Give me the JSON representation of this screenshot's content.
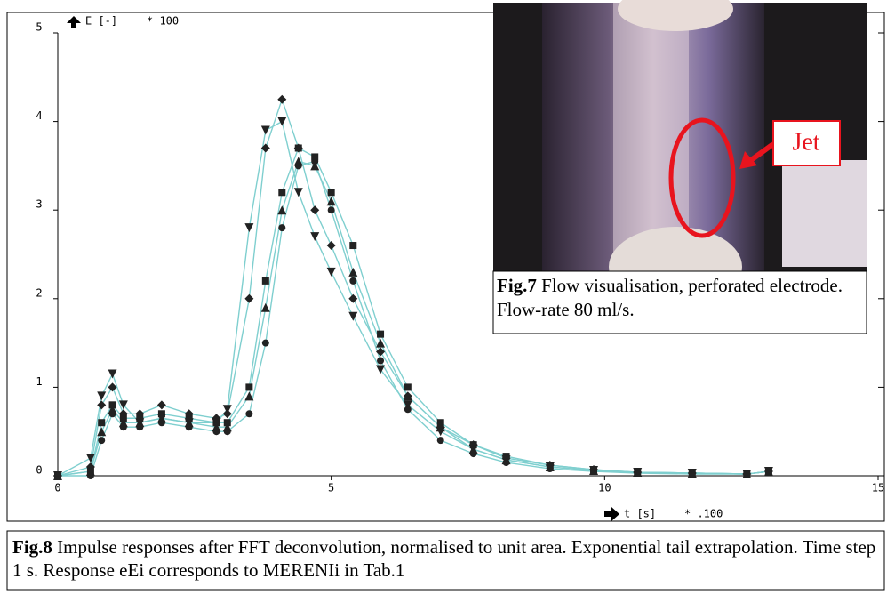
{
  "chart_data": {
    "type": "line",
    "y_axis_label": "E [-]",
    "y_axis_multiplier": "* 100",
    "x_axis_label": "t [s]",
    "x_axis_multiplier": "* .100",
    "x": [
      0,
      0.6,
      0.8,
      1.0,
      1.2,
      1.5,
      1.9,
      2.4,
      2.9,
      3.1,
      3.5,
      3.8,
      4.1,
      4.4,
      4.7,
      5.0,
      5.4,
      5.9,
      6.4,
      7.0,
      7.6,
      8.2,
      9.0,
      9.8,
      10.6,
      11.6,
      12.6,
      13.0
    ],
    "series": [
      {
        "color": "#7fcfcf",
        "marker": "diamond",
        "values": [
          0,
          0.1,
          0.8,
          1.0,
          0.7,
          0.7,
          0.8,
          0.7,
          0.65,
          0.7,
          2.0,
          3.7,
          4.25,
          3.7,
          3.0,
          2.6,
          2.0,
          1.4,
          0.9,
          0.55,
          0.35,
          0.2,
          0.12,
          0.07,
          0.04,
          0.03,
          0.02,
          0.05
        ]
      },
      {
        "color": "#7fcfcf",
        "marker": "triangle-down",
        "values": [
          0,
          0.2,
          0.9,
          1.15,
          0.8,
          0.6,
          0.65,
          0.6,
          0.6,
          0.75,
          2.8,
          3.9,
          4.0,
          3.2,
          2.7,
          2.3,
          1.8,
          1.2,
          0.8,
          0.5,
          0.3,
          0.18,
          0.1,
          0.06,
          0.04,
          0.03,
          0.02,
          0.05
        ]
      },
      {
        "color": "#7fcfcf",
        "marker": "square",
        "values": [
          0,
          0.05,
          0.6,
          0.8,
          0.65,
          0.65,
          0.7,
          0.65,
          0.6,
          0.6,
          1.0,
          2.2,
          3.2,
          3.7,
          3.6,
          3.2,
          2.6,
          1.6,
          1.0,
          0.6,
          0.35,
          0.22,
          0.12,
          0.07,
          0.04,
          0.03,
          0.02,
          0.05
        ]
      },
      {
        "color": "#7fcfcf",
        "marker": "triangle-up",
        "values": [
          0,
          0.05,
          0.5,
          0.75,
          0.6,
          0.6,
          0.65,
          0.6,
          0.55,
          0.55,
          0.9,
          1.9,
          3.0,
          3.55,
          3.5,
          3.1,
          2.3,
          1.5,
          0.9,
          0.55,
          0.3,
          0.18,
          0.1,
          0.06,
          0.04,
          0.03,
          0.02,
          0.05
        ]
      },
      {
        "color": "#7fcfcf",
        "marker": "circle",
        "values": [
          0,
          0.0,
          0.4,
          0.7,
          0.55,
          0.55,
          0.6,
          0.55,
          0.5,
          0.5,
          0.7,
          1.5,
          2.8,
          3.5,
          3.55,
          3.0,
          2.2,
          1.3,
          0.75,
          0.4,
          0.25,
          0.15,
          0.08,
          0.05,
          0.03,
          0.02,
          0.02,
          0.05
        ]
      }
    ],
    "xlim": [
      0,
      15
    ],
    "xticks": [
      0,
      5,
      10,
      15
    ],
    "ylim": [
      0,
      5
    ],
    "yticks": [
      0,
      1,
      2,
      3,
      4,
      5
    ],
    "marker_color": "#222222",
    "inset": {
      "callout": "Jet",
      "caption_label": "Fig.7",
      "caption_text": " Flow visualisation, perforated electrode. Flow-rate 80 ml/s."
    },
    "caption_label": "Fig.8",
    "caption_text": " Impulse responses after FFT deconvolution, normalised to unit area. Exponential tail extrapolation. Time step 1 s. Response eEi corresponds to MERENIi in Tab.1"
  }
}
